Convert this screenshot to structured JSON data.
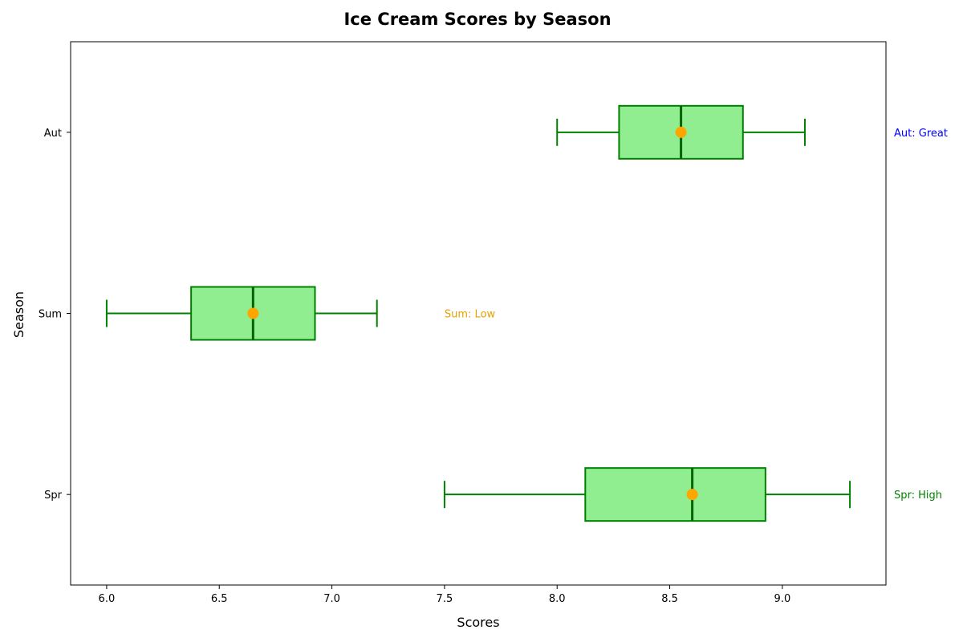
{
  "chart_data": {
    "type": "box",
    "orientation": "horizontal",
    "title": "Ice Cream Scores by Season",
    "xlabel": "Scores",
    "ylabel": "Season",
    "xlim": [
      5.84,
      9.46
    ],
    "x_ticks": [
      "6.0",
      "6.5",
      "7.0",
      "7.5",
      "8.0",
      "8.5",
      "9.0"
    ],
    "categories": [
      "Spr",
      "Sum",
      "Aut"
    ],
    "series": [
      {
        "category": "Spr",
        "whisker_low": 7.5,
        "q1": 8.125,
        "median": 8.6,
        "mean": 8.6,
        "q3": 8.925,
        "whisker_high": 9.3
      },
      {
        "category": "Sum",
        "whisker_low": 6.0,
        "q1": 6.375,
        "median": 6.65,
        "mean": 6.65,
        "q3": 6.925,
        "whisker_high": 7.2
      },
      {
        "category": "Aut",
        "whisker_low": 8.0,
        "q1": 8.275,
        "median": 8.55,
        "mean": 8.55,
        "q3": 8.825,
        "whisker_high": 9.1
      }
    ],
    "annotations": [
      {
        "category": "Aut",
        "text": "Aut: Great",
        "color": "#0000ff",
        "x": 9.5
      },
      {
        "category": "Sum",
        "text": "Sum: Low",
        "color": "#e6a100",
        "x": 7.5
      },
      {
        "category": "Spr",
        "text": "Spr: High",
        "color": "#008000",
        "x": 9.5
      }
    ],
    "colors": {
      "box_fill": "#90ee90",
      "box_edge": "#008000",
      "median": "#006400",
      "mean_marker": "#ffa500"
    },
    "grid": false,
    "legend": "none"
  }
}
